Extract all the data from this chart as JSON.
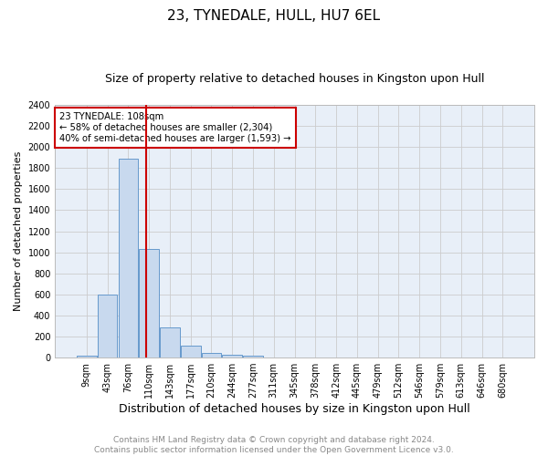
{
  "title": "23, TYNEDALE, HULL, HU7 6EL",
  "subtitle": "Size of property relative to detached houses in Kingston upon Hull",
  "xlabel": "Distribution of detached houses by size in Kingston upon Hull",
  "ylabel": "Number of detached properties",
  "footer_line1": "Contains HM Land Registry data © Crown copyright and database right 2024.",
  "footer_line2": "Contains public sector information licensed under the Open Government Licence v3.0.",
  "bar_labels": [
    "9sqm",
    "43sqm",
    "76sqm",
    "110sqm",
    "143sqm",
    "177sqm",
    "210sqm",
    "244sqm",
    "277sqm",
    "311sqm",
    "345sqm",
    "378sqm",
    "412sqm",
    "445sqm",
    "479sqm",
    "512sqm",
    "546sqm",
    "579sqm",
    "613sqm",
    "646sqm",
    "680sqm"
  ],
  "bar_values": [
    20,
    600,
    1890,
    1030,
    290,
    115,
    47,
    28,
    20,
    5,
    3,
    2,
    1,
    0,
    0,
    0,
    0,
    0,
    0,
    0,
    0
  ],
  "bar_color": "#c8d9ee",
  "bar_edge_color": "#6699cc",
  "property_line_x": 2.85,
  "annotation_line1": "23 TYNEDALE: 108sqm",
  "annotation_line2": "← 58% of detached houses are smaller (2,304)",
  "annotation_line3": "40% of semi-detached houses are larger (1,593) →",
  "annotation_box_color": "#ffffff",
  "annotation_box_edge_color": "#cc0000",
  "property_line_color": "#cc0000",
  "ylim": [
    0,
    2400
  ],
  "yticks": [
    0,
    200,
    400,
    600,
    800,
    1000,
    1200,
    1400,
    1600,
    1800,
    2000,
    2200,
    2400
  ],
  "grid_color": "#cccccc",
  "bg_color": "#e8eff8",
  "fig_bg_color": "#ffffff",
  "title_fontsize": 11,
  "subtitle_fontsize": 9,
  "xlabel_fontsize": 9,
  "ylabel_fontsize": 8,
  "tick_fontsize": 7,
  "footer_fontsize": 6.5,
  "footer_color": "#888888"
}
